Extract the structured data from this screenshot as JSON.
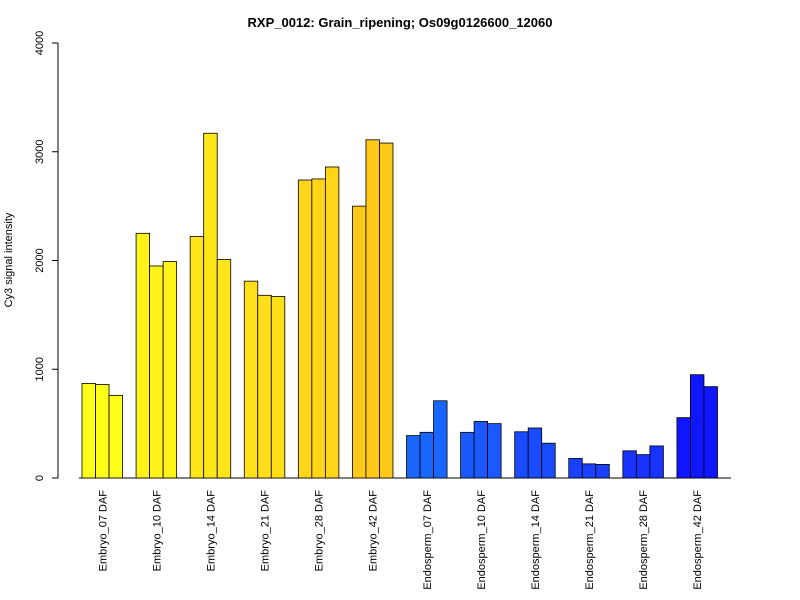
{
  "chart_data": {
    "type": "bar",
    "title": "RXP_0012: Grain_ripening; Os09g0126600_12060",
    "ylabel": "Cy3 signal intensity",
    "xlabel": "",
    "ylim": [
      0,
      4000
    ],
    "yticks": [
      0,
      1000,
      2000,
      3000,
      4000
    ],
    "grid": false,
    "groups": [
      {
        "label": "Embryo_07 DAF",
        "values": [
          870,
          860,
          760
        ],
        "color": "#FFFF19"
      },
      {
        "label": "Embryo_10 DAF",
        "values": [
          2250,
          1950,
          1990
        ],
        "color": "#FFF219"
      },
      {
        "label": "Embryo_14 DAF",
        "values": [
          2220,
          3170,
          2010
        ],
        "color": "#FFE619"
      },
      {
        "label": "Embryo_21 DAF",
        "values": [
          1810,
          1680,
          1670
        ],
        "color": "#FFDF19"
      },
      {
        "label": "Embryo_28 DAF",
        "values": [
          2740,
          2750,
          2860
        ],
        "color": "#FFD519"
      },
      {
        "label": "Embryo_42 DAF",
        "values": [
          2500,
          3110,
          3080
        ],
        "color": "#FFC919"
      },
      {
        "label": "Endosperm_07 DAF",
        "values": [
          390,
          420,
          710
        ],
        "color": "#1966FF"
      },
      {
        "label": "Endosperm_10 DAF",
        "values": [
          420,
          520,
          500
        ],
        "color": "#1959FF"
      },
      {
        "label": "Endosperm_14 DAF",
        "values": [
          425,
          460,
          320
        ],
        "color": "#194CFF"
      },
      {
        "label": "Endosperm_21 DAF",
        "values": [
          180,
          130,
          125
        ],
        "color": "#193FFF"
      },
      {
        "label": "Endosperm_28 DAF",
        "values": [
          250,
          215,
          295
        ],
        "color": "#1932FF"
      },
      {
        "label": "Endosperm_42 DAF",
        "values": [
          555,
          950,
          840
        ],
        "color": "#0F17FF"
      }
    ]
  }
}
